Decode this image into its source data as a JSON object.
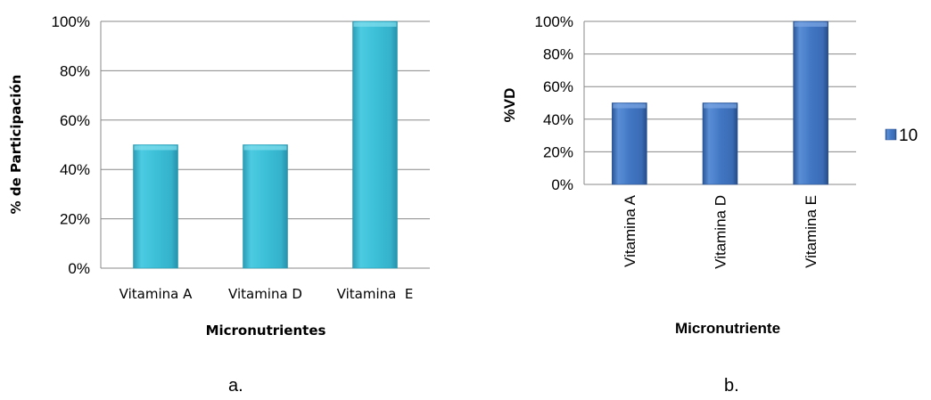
{
  "panel_labels": [
    "a.",
    "b."
  ],
  "chart_data": [
    {
      "type": "bar",
      "categories": [
        "Vitamina A",
        "Vitamina D",
        "Vitamina  E"
      ],
      "values": [
        50,
        50,
        100
      ],
      "ylim": [
        0,
        100
      ],
      "yticks": [
        "0%",
        "20%",
        "40%",
        "60%",
        "80%",
        "100%"
      ],
      "xlabel": "Micronutrientes",
      "ylabel": "% de Participación",
      "grid": true,
      "legend": null,
      "colors": {
        "bar": "#3cc0d8",
        "bar_dark": "#2a9bb4",
        "bar_light": "#7fdcec",
        "grid": "#888888"
      }
    },
    {
      "type": "bar",
      "categories": [
        "Vitamina A",
        "Vitamina D",
        "Vitamina E"
      ],
      "series": [
        {
          "name": "10",
          "values": [
            50,
            50,
            100
          ]
        }
      ],
      "ylim": [
        0,
        100
      ],
      "yticks": [
        "0%",
        "20%",
        "40%",
        "60%",
        "80%",
        "100%"
      ],
      "xlabel": "Micronutriente",
      "ylabel": "%VD",
      "grid": true,
      "legend": "right",
      "colors": {
        "bar": "#4277c4",
        "bar_dark": "#2a5596",
        "bar_light": "#79a4e2",
        "grid": "#888888"
      }
    }
  ]
}
